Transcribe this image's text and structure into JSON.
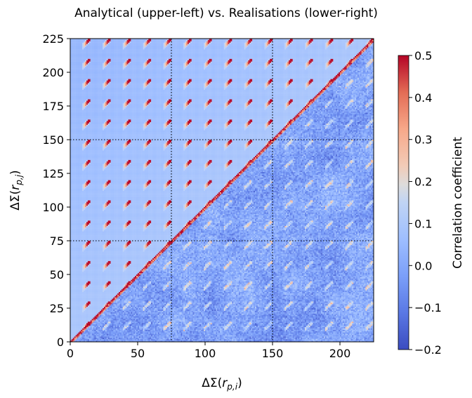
{
  "chart_data": {
    "type": "heatmap",
    "title": "Analytical (upper-left) vs. Realisations (lower-right)",
    "xlabel": "ΔΣ(r_{p,i})",
    "ylabel": "ΔΣ(r_{p,j})",
    "xlim": [
      0,
      225
    ],
    "ylim": [
      0,
      225
    ],
    "x_ticks": [
      0,
      50,
      100,
      150,
      200
    ],
    "y_ticks": [
      0,
      25,
      50,
      75,
      100,
      125,
      150,
      175,
      200,
      225
    ],
    "block_boundaries": [
      75,
      150
    ],
    "block_size": 15,
    "grid": false,
    "colorbar": {
      "label": "Correlation coefficient",
      "vmin": -0.2,
      "vmax": 0.5,
      "ticks": [
        "0.5",
        "0.4",
        "0.3",
        "0.2",
        "0.1",
        "0.0",
        "−0.1",
        "−0.2"
      ],
      "colormap": "coolwarm"
    },
    "regions": {
      "upper_left": "Analytical",
      "lower_right": "Realisations"
    }
  }
}
